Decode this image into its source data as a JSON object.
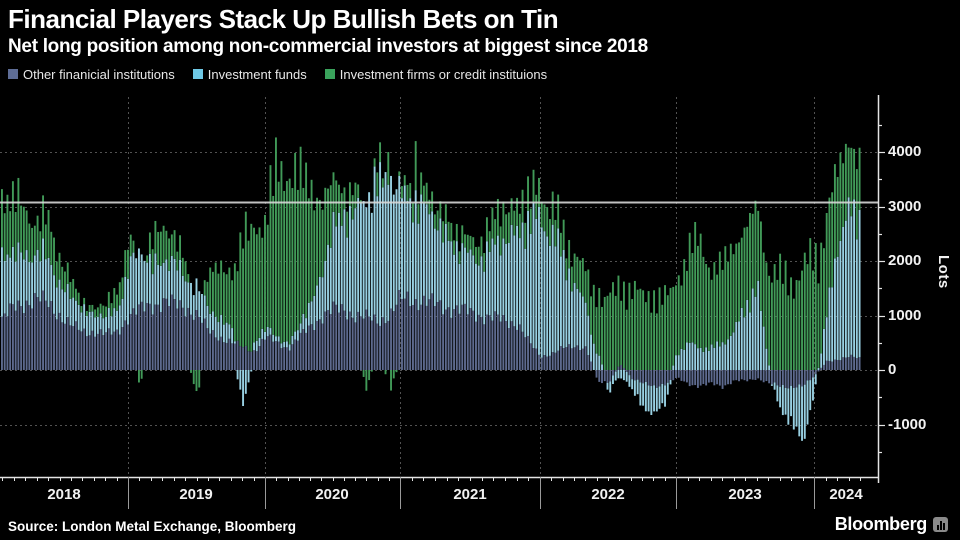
{
  "header": {
    "title": "Financial Players Stack Up Bullish Bets on Tin",
    "subtitle": "Net long position among non-commercial investors at biggest since 2018"
  },
  "legend": [
    {
      "label": "Other finanicial institutions",
      "color": "#5e6d96"
    },
    {
      "label": "Investment funds",
      "color": "#6fc9e6"
    },
    {
      "label": "Investment firms or credit instituions",
      "color": "#3aa35c"
    }
  ],
  "footer": {
    "source": "Source: London Metal Exchange, Bloomberg",
    "brand": "Bloomberg",
    "brand_icon": "chart-bars-icon"
  },
  "chart_data": {
    "type": "bar",
    "subtype": "stacked weekly bars, positive up / negative down",
    "title": "Financial Players Stack Up Bullish Bets on Tin",
    "subtitle": "Net long position among non-commercial investors at biggest since 2018",
    "ylabel": "Lots",
    "ylim": [
      -1900,
      5000
    ],
    "yticks_major": [
      4000,
      3000,
      2000,
      1000,
      0,
      -1000
    ],
    "ytick_minor_step": 500,
    "reference_line_value": 3080,
    "grid": "dotted horizontal at each 1000 and dotted vertical at year starts",
    "legend_position": "top-left",
    "years": [
      "2018",
      "2019",
      "2020",
      "2021",
      "2022",
      "2023",
      "2024"
    ],
    "months_start": "2018-01",
    "months_end": "2024-05",
    "series": [
      {
        "name": "Other finanicial institutions",
        "color": "#5d6a8e",
        "monthly": [
          700,
          950,
          1150,
          1250,
          1300,
          1200,
          1000,
          800,
          700,
          700,
          650,
          700,
          1000,
          1100,
          1200,
          1250,
          1200,
          1150,
          1000,
          700,
          600,
          500,
          420,
          350,
          600,
          500,
          400,
          600,
          800,
          1000,
          1100,
          1100,
          1000,
          950,
          900,
          1000,
          1300,
          1300,
          1250,
          1200,
          1150,
          1100,
          1050,
          1000,
          950,
          900,
          850,
          500,
          250,
          300,
          400,
          450,
          400,
          -200,
          -250,
          120,
          -150,
          -250,
          -300,
          -250,
          -150,
          -250,
          -300,
          -250,
          -300,
          -200,
          -200,
          -150,
          -250,
          -300,
          -300,
          -300,
          -100,
          150,
          200,
          250,
          200
        ]
      },
      {
        "name": "Investment funds",
        "color": "#98d0e2",
        "monthly": [
          1000,
          1100,
          1000,
          900,
          800,
          800,
          600,
          500,
          400,
          350,
          300,
          400,
          950,
          1000,
          800,
          750,
          700,
          600,
          500,
          400,
          350,
          300,
          -600,
          200,
          150,
          100,
          100,
          200,
          400,
          900,
          1400,
          1800,
          1900,
          2200,
          2500,
          2600,
          1800,
          1900,
          1700,
          1500,
          1300,
          1100,
          1000,
          1100,
          1300,
          1500,
          1700,
          2200,
          2500,
          2200,
          1600,
          1100,
          800,
          300,
          -200,
          -150,
          -200,
          -450,
          -500,
          -350,
          300,
          500,
          400,
          400,
          500,
          700,
          1200,
          1500,
          100,
          -400,
          -700,
          -1000,
          -300,
          800,
          2200,
          2600,
          2600
        ]
      },
      {
        "name": "Investment firms or credit instituions",
        "color": "#419a58",
        "monthly": [
          1200,
          1100,
          1000,
          800,
          600,
          700,
          500,
          300,
          100,
          150,
          200,
          400,
          500,
          -300,
          500,
          600,
          500,
          300,
          -500,
          700,
          900,
          1100,
          1900,
          2300,
          1900,
          3100,
          3300,
          2600,
          2200,
          1300,
          800,
          500,
          400,
          -400,
          500,
          -400,
          200,
          300,
          400,
          300,
          350,
          300,
          250,
          400,
          500,
          600,
          500,
          500,
          550,
          500,
          500,
          550,
          600,
          1200,
          1300,
          1500,
          1500,
          1300,
          1400,
          1300,
          1400,
          1700,
          1900,
          1500,
          1400,
          1600,
          1500,
          1400,
          1800,
          1700,
          1600,
          1900,
          2000,
          1900,
          1400,
          1200,
          1200
        ]
      }
    ],
    "spike_weeks": [
      {
        "month_pos": 0.5,
        "other": 900,
        "funds": 1100,
        "firms": 1800,
        "total": 3800
      },
      {
        "month_pos": 34.8,
        "other": 900,
        "funds": 2500,
        "firms": 600,
        "total": 4000
      },
      {
        "month_pos": 37.2,
        "other": 1300,
        "funds": 2000,
        "firms": 900,
        "total": 4200
      },
      {
        "month_pos": 76.0,
        "other": 250,
        "funds": 2750,
        "firms": 1500,
        "total": 4500
      }
    ]
  },
  "colors": {
    "background": "#000000",
    "grid_dotted": "#525252",
    "reference_line": "#cfcfcf",
    "axis": "#e4e4e4",
    "text": "#ffffff"
  }
}
